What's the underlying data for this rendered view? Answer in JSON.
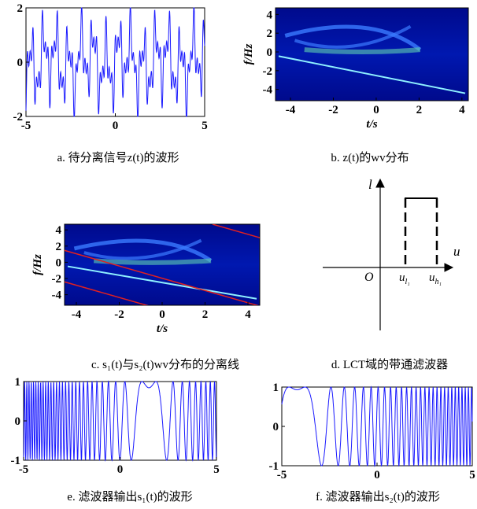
{
  "panels": [
    {
      "caption": "a. 待分离信号z(t)的波形",
      "xlim": [
        -5,
        5
      ],
      "ylim": [
        -2,
        2
      ],
      "xticks": [
        -5,
        0,
        5
      ],
      "yticks": [
        -2,
        0,
        2
      ]
    },
    {
      "caption": "b. z(t)的wv分布",
      "ylabel": "f/Hz",
      "xlabel": "t/s",
      "xlim": [
        -4.7,
        4.3
      ],
      "ylim": [
        -5.2,
        4.7
      ],
      "xticks": [
        -4,
        -2,
        0,
        2,
        4
      ],
      "yticks": [
        4,
        2,
        0,
        -2,
        -4
      ]
    },
    {
      "caption": "c. s₁(t)与s₂(t)wv分布的分离线",
      "ylabel": "f/Hz",
      "xlabel": "t/s",
      "xlim": [
        -4.55,
        4.55
      ],
      "ylim": [
        -5.3,
        4.7
      ],
      "xticks": [
        -4,
        -2,
        0,
        2,
        4
      ],
      "yticks": [
        4,
        2,
        0,
        -2,
        -4
      ]
    },
    {
      "caption": "d. LCT域的带通滤波器",
      "labels": {
        "vertical": "l",
        "horizontal": "u",
        "origin": "O",
        "lower": "u",
        "lower_sub": "l₁",
        "upper": "u",
        "upper_sub": "h₁"
      }
    },
    {
      "caption": "e.  滤波器输出s₁(t)的波形",
      "xlim": [
        -5,
        5
      ],
      "ylim": [
        -1,
        1
      ],
      "xticks": [
        -5,
        0,
        5
      ],
      "yticks": [
        1,
        0,
        -1
      ]
    },
    {
      "caption": "f.  滤波器输出s₂(t)的波形",
      "xlim": [
        -5,
        5
      ],
      "ylim": [
        -1,
        1
      ],
      "xticks": [
        -5,
        0,
        5
      ],
      "yticks": [
        1,
        0,
        -1
      ]
    }
  ]
}
